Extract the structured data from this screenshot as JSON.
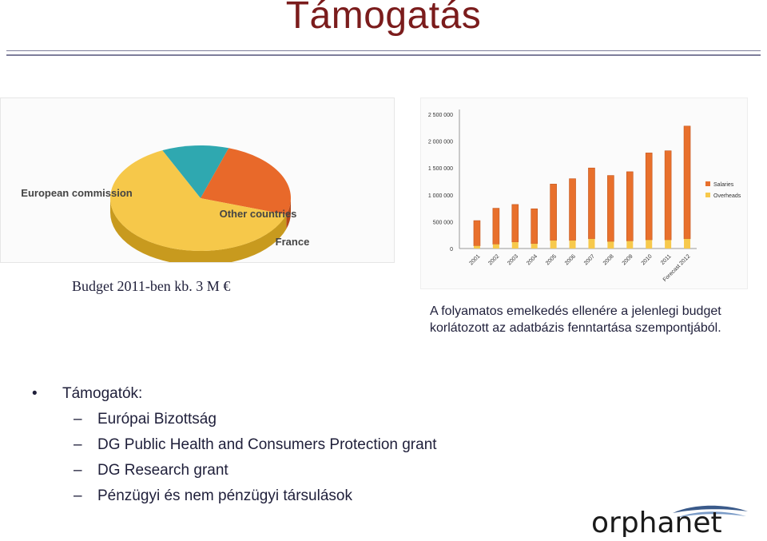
{
  "title": "Támogatás",
  "budget_note": "Budget 2011-ben kb. 3 M €",
  "caption": "A folyamatos emelkedés ellenére a jelenlegi budget korlátozott az adatbázis fenntartása szempontjából.",
  "supporters": {
    "heading": "Támogatók:",
    "bullet": "•",
    "dash": "–",
    "items": [
      "Európai Bizottság",
      "DG Public Health and Consumers Protection grant",
      "DG Research grant",
      "Pénzügyi és nem pénzügyi társulások"
    ]
  },
  "logo": {
    "text": "orphanet",
    "icon": "orphanet-logo"
  },
  "colors": {
    "title": "#7b1c1c",
    "orange": "#e8692a",
    "yellow": "#f6c84a",
    "teal": "#2fa8b0",
    "bar_orange": "#e8702c",
    "bar_yellow": "#f7c94c"
  },
  "chart_data": [
    {
      "type": "pie",
      "categories": [
        "Other countries",
        "European commission",
        "France"
      ],
      "values": [
        12,
        25,
        63
      ],
      "colors": [
        "#2fa8b0",
        "#e8692a",
        "#f6c84a"
      ]
    },
    {
      "type": "bar",
      "stacked": true,
      "categories": [
        "2001",
        "2002",
        "2003",
        "2004",
        "2005",
        "2006",
        "2007",
        "2008",
        "2009",
        "2010",
        "2011",
        "Forecast 2012"
      ],
      "series": [
        {
          "name": "Overheads",
          "values": [
            50000,
            80000,
            120000,
            90000,
            150000,
            150000,
            180000,
            130000,
            140000,
            160000,
            160000,
            180000
          ]
        },
        {
          "name": "Salaries",
          "values": [
            470000,
            670000,
            700000,
            650000,
            1050000,
            1150000,
            1320000,
            1230000,
            1290000,
            1620000,
            1660000,
            2100000
          ]
        }
      ],
      "yticks": [
        "0",
        "500 000",
        "1 000 000",
        "1 500 000",
        "2 000 000",
        "2 500 000"
      ],
      "ylim": [
        0,
        2500000
      ],
      "legend": [
        "Salaries",
        "Overheads"
      ],
      "legend_position": "right",
      "grid": false
    }
  ]
}
